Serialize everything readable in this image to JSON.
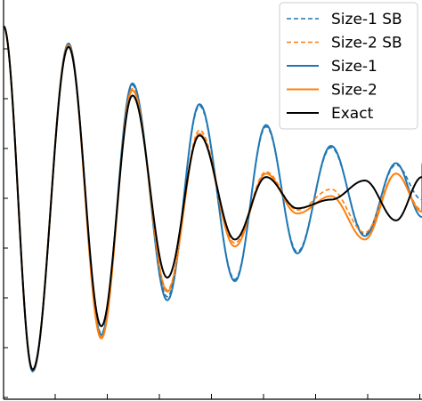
{
  "chart_data": {
    "type": "line",
    "title": "",
    "xlabel": "",
    "ylabel": "",
    "grid": false,
    "legend_position": "top-right",
    "xlim": [
      0,
      8.05
    ],
    "ylim": [
      -1.15,
      1.15
    ],
    "x_tick_count": 9,
    "y_tick_count": 8,
    "series": [
      {
        "name": "Size-1 SB",
        "color": "#1f77b4",
        "dash": true,
        "points": [
          [
            0.0,
            1.0
          ],
          [
            0.56,
            -0.98
          ],
          [
            1.25,
            0.89
          ],
          [
            1.88,
            -0.77
          ],
          [
            2.48,
            0.66
          ],
          [
            3.15,
            -0.56
          ],
          [
            3.77,
            0.54
          ],
          [
            4.45,
            -0.46
          ],
          [
            5.05,
            0.42
          ],
          [
            5.65,
            -0.3
          ],
          [
            6.3,
            0.3
          ],
          [
            6.95,
            -0.2
          ],
          [
            7.55,
            0.2
          ],
          [
            8.05,
            0.0
          ]
        ]
      },
      {
        "name": "Size-2 SB",
        "color": "#ff7f0e",
        "dash": true,
        "points": [
          [
            0.0,
            1.0
          ],
          [
            0.56,
            -0.98
          ],
          [
            1.25,
            0.89
          ],
          [
            1.88,
            -0.79
          ],
          [
            2.48,
            0.64
          ],
          [
            3.15,
            -0.52
          ],
          [
            3.77,
            0.4
          ],
          [
            4.45,
            -0.25
          ],
          [
            5.05,
            0.16
          ],
          [
            5.65,
            -0.06
          ],
          [
            6.3,
            0.06
          ],
          [
            6.95,
            -0.19
          ],
          [
            7.55,
            0.15
          ],
          [
            8.05,
            -0.06
          ],
          [
            8.05,
            0.21
          ]
        ]
      },
      {
        "name": "Size-1",
        "color": "#1f77b4",
        "dash": false,
        "points": [
          [
            0.0,
            1.0
          ],
          [
            0.56,
            -0.99
          ],
          [
            1.25,
            0.9
          ],
          [
            1.88,
            -0.78
          ],
          [
            2.48,
            0.67
          ],
          [
            3.15,
            -0.58
          ],
          [
            3.77,
            0.55
          ],
          [
            4.45,
            -0.47
          ],
          [
            5.05,
            0.43
          ],
          [
            5.65,
            -0.31
          ],
          [
            6.3,
            0.31
          ],
          [
            6.95,
            -0.21
          ],
          [
            7.55,
            0.21
          ],
          [
            8.05,
            -0.1
          ]
        ]
      },
      {
        "name": "Size-2",
        "color": "#ff7f0e",
        "dash": false,
        "points": [
          [
            0.0,
            1.0
          ],
          [
            0.56,
            -0.98
          ],
          [
            1.25,
            0.89
          ],
          [
            1.88,
            -0.8
          ],
          [
            2.48,
            0.63
          ],
          [
            3.15,
            -0.53
          ],
          [
            3.77,
            0.38
          ],
          [
            4.45,
            -0.27
          ],
          [
            5.05,
            0.15
          ],
          [
            5.65,
            -0.08
          ],
          [
            6.3,
            0.02
          ],
          [
            6.95,
            -0.23
          ],
          [
            7.55,
            0.15
          ],
          [
            8.05,
            -0.07
          ],
          [
            8.05,
            0.2
          ]
        ]
      },
      {
        "name": "Exact",
        "color": "#000000",
        "dash": false,
        "points": [
          [
            0.0,
            1.0
          ],
          [
            0.56,
            -0.98
          ],
          [
            1.25,
            0.88
          ],
          [
            1.88,
            -0.73
          ],
          [
            2.48,
            0.6
          ],
          [
            3.15,
            -0.45
          ],
          [
            3.77,
            0.37
          ],
          [
            4.45,
            -0.23
          ],
          [
            5.05,
            0.13
          ],
          [
            5.65,
            -0.05
          ],
          [
            6.3,
            0.0
          ],
          [
            6.95,
            0.11
          ],
          [
            7.55,
            -0.12
          ],
          [
            8.05,
            0.13
          ]
        ]
      }
    ]
  }
}
